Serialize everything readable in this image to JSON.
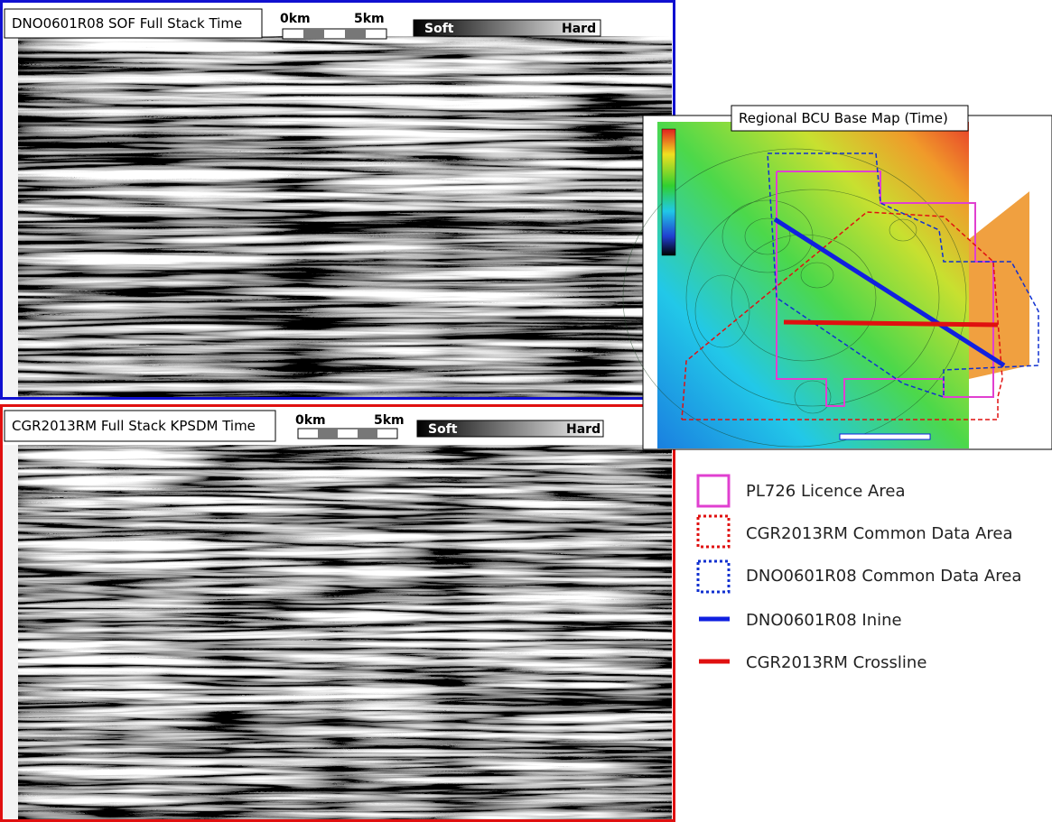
{
  "panels": [
    {
      "title": "DNO0601R08 SOF Full Stack Time",
      "scale_start": "0km",
      "scale_end": "5km",
      "soft": "Soft",
      "hard": "Hard"
    },
    {
      "title": "CGR2013RM Full Stack KPSDM Time",
      "scale_start": "0km",
      "scale_end": "5km",
      "soft": "Soft",
      "hard": "Hard"
    }
  ],
  "map": {
    "title": "Regional BCU Base Map (Time)"
  },
  "legend": [
    {
      "label": "PL726 Licence Area"
    },
    {
      "label": "CGR2013RM Common Data Area"
    },
    {
      "label": "DNO0601R08 Common Data Area"
    },
    {
      "label": "DNO0601R08 Inine"
    },
    {
      "label": "CGR2013RM Crossline"
    }
  ]
}
